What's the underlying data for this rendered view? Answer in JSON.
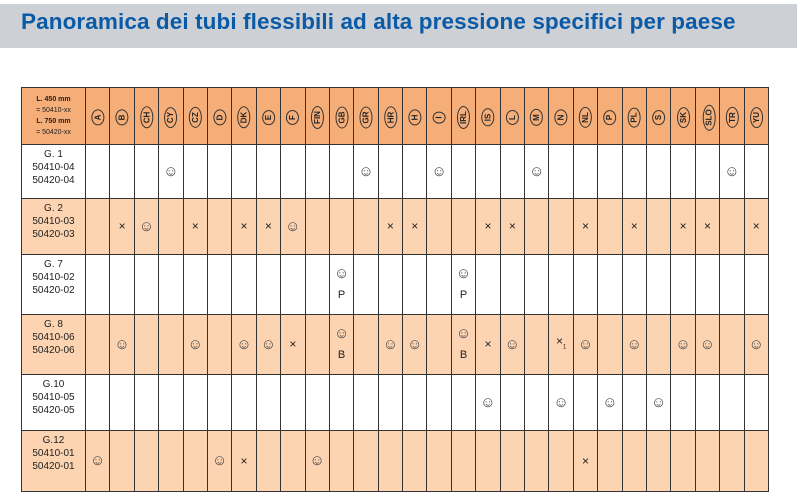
{
  "title": "Panoramica dei tubi flessibili ad alta pressione specifici per paese",
  "legend": {
    "line1": "L. 450 mm",
    "line2": "= 50410-xx",
    "line3": "L. 750 mm",
    "line4": "= 50420-xx"
  },
  "colors": {
    "title": "#0b5aa6",
    "header": "#f6ae78",
    "band": "#fdd4b2",
    "title_band": "#cdd0d5"
  },
  "countries": [
    "A",
    "B",
    "CH",
    "CY",
    "CZ",
    "D",
    "DK",
    "E",
    "F",
    "FIN",
    "GB",
    "GR",
    "HR",
    "H",
    "I",
    "IRL",
    "IS",
    "L",
    "M",
    "N",
    "NL",
    "P",
    "PL",
    "S",
    "SK",
    "SLO",
    "TR",
    "YU"
  ],
  "rows": [
    {
      "label": [
        "G. 1",
        "50410-04",
        "50420-04"
      ],
      "cells": {
        "CY": "☺",
        "GR": "☺",
        "I": "☺",
        "M": "☺",
        "TR": "☺"
      }
    },
    {
      "label": [
        "G. 2",
        "50410-03",
        "50420-03"
      ],
      "cells": {
        "B": "×",
        "CH": "☺",
        "CZ": "×",
        "DK": "×",
        "E": "×",
        "F": "☺",
        "HR": "×",
        "H": "×",
        "IS": "×",
        "L": "×",
        "NL": "×",
        "PL": "×",
        "SK": "×",
        "SLO": "×",
        "YU": "×"
      }
    },
    {
      "label": [
        "G. 7",
        "50410-02",
        "50420-02"
      ],
      "cells": {
        "GB": "☺|P",
        "IRL": "☺|P"
      }
    },
    {
      "label": [
        "G. 8",
        "50410-06",
        "50420-06"
      ],
      "cells": {
        "B": "☺",
        "CZ": "☺",
        "DK": "☺",
        "E": "☺",
        "F": "×",
        "GB": "☺|B",
        "HR": "☺",
        "H": "☺",
        "IRL": "☺|B",
        "IS": "×",
        "L": "☺",
        "N": "×_1",
        "NL": "☺",
        "PL": "☺",
        "SK": "☺",
        "SLO": "☺",
        "YU": "☺"
      }
    },
    {
      "label": [
        "G.10",
        "50410-05",
        "50420-05"
      ],
      "cells": {
        "IS": "☺",
        "N": "☺",
        "P": "☺",
        "S": "☺"
      }
    },
    {
      "label": [
        "G.12",
        "50410-01",
        "50420-01"
      ],
      "cells": {
        "A": "☺",
        "D": "☺",
        "DK": "×",
        "FIN": "☺",
        "NL": "×"
      }
    }
  ]
}
